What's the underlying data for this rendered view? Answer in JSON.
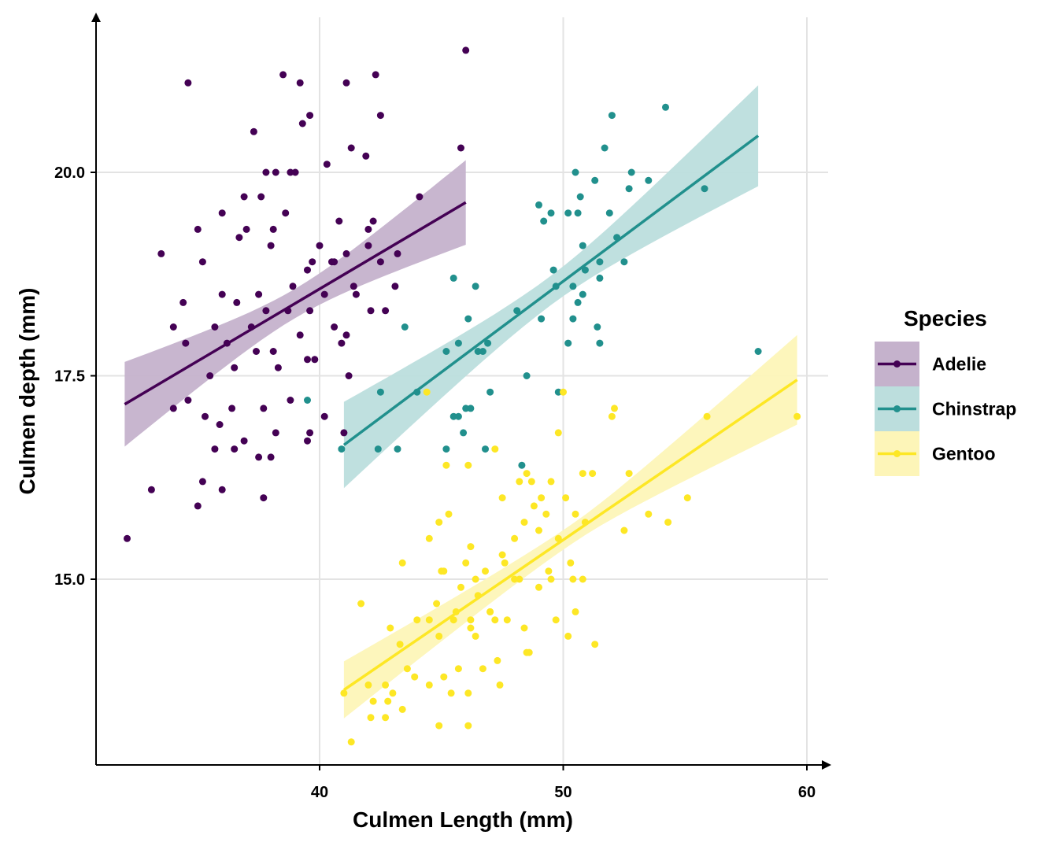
{
  "chart_data": {
    "type": "scatter",
    "xlabel": "Culmen Length (mm)",
    "ylabel": "Culmen depth (mm)",
    "xlim": [
      31.0,
      61.0
    ],
    "ylim": [
      12.6,
      22.0
    ],
    "xticks": [
      40,
      50,
      60
    ],
    "xtick_labels": [
      "40",
      "50",
      "60"
    ],
    "yticks": [
      15.0,
      17.5,
      20.0
    ],
    "ytick_labels": [
      "15.0",
      "17.5",
      "20.0"
    ],
    "grid": true,
    "legend": {
      "title": "Species",
      "placement": "right"
    },
    "series": [
      {
        "name": "Adelie",
        "color": "#440154",
        "fill": "#c5b2cc",
        "fit": {
          "x0": 32.0,
          "y0": 17.15,
          "x1": 46.0,
          "y1": 19.63,
          "ci_start": 0.52,
          "ci_mid": 0.18,
          "ci_end": 0.52
        },
        "points": [
          [
            46.0,
            21.5
          ],
          [
            38.5,
            21.2
          ],
          [
            42.3,
            21.2
          ],
          [
            34.6,
            21.1
          ],
          [
            39.2,
            21.1
          ],
          [
            41.1,
            21.1
          ],
          [
            42.5,
            20.7
          ],
          [
            39.6,
            20.7
          ],
          [
            37.3,
            20.5
          ],
          [
            39.3,
            20.6
          ],
          [
            45.8,
            20.3
          ],
          [
            41.3,
            20.3
          ],
          [
            38.8,
            20.0
          ],
          [
            37.8,
            20.0
          ],
          [
            38.2,
            20.0
          ],
          [
            39.0,
            20.0
          ],
          [
            40.3,
            20.1
          ],
          [
            41.9,
            20.2
          ],
          [
            44.1,
            19.7
          ],
          [
            37.6,
            19.7
          ],
          [
            36.9,
            19.7
          ],
          [
            38.6,
            19.5
          ],
          [
            36.0,
            19.5
          ],
          [
            40.8,
            19.4
          ],
          [
            42.2,
            19.4
          ],
          [
            37.0,
            19.3
          ],
          [
            35.0,
            19.3
          ],
          [
            38.1,
            19.3
          ],
          [
            42.0,
            19.3
          ],
          [
            33.5,
            19.0
          ],
          [
            36.7,
            19.2
          ],
          [
            38.0,
            19.1
          ],
          [
            40.0,
            19.1
          ],
          [
            42.0,
            19.1
          ],
          [
            39.7,
            18.9
          ],
          [
            40.6,
            18.9
          ],
          [
            41.1,
            19.0
          ],
          [
            42.5,
            18.9
          ],
          [
            43.2,
            19.0
          ],
          [
            35.2,
            18.9
          ],
          [
            39.5,
            18.8
          ],
          [
            40.5,
            18.9
          ],
          [
            41.4,
            18.6
          ],
          [
            36.0,
            18.5
          ],
          [
            37.5,
            18.5
          ],
          [
            38.9,
            18.6
          ],
          [
            40.2,
            18.5
          ],
          [
            41.5,
            18.5
          ],
          [
            43.1,
            18.6
          ],
          [
            34.4,
            18.4
          ],
          [
            36.6,
            18.4
          ],
          [
            38.7,
            18.3
          ],
          [
            39.6,
            18.3
          ],
          [
            37.8,
            18.3
          ],
          [
            40.6,
            18.1
          ],
          [
            42.1,
            18.3
          ],
          [
            34.0,
            18.1
          ],
          [
            35.7,
            18.1
          ],
          [
            37.2,
            18.1
          ],
          [
            39.2,
            18.0
          ],
          [
            40.9,
            17.9
          ],
          [
            41.1,
            18.0
          ],
          [
            42.7,
            18.3
          ],
          [
            34.5,
            17.9
          ],
          [
            36.2,
            17.9
          ],
          [
            38.1,
            17.8
          ],
          [
            39.8,
            17.7
          ],
          [
            37.4,
            17.8
          ],
          [
            35.5,
            17.5
          ],
          [
            36.5,
            17.6
          ],
          [
            38.3,
            17.6
          ],
          [
            39.5,
            17.7
          ],
          [
            41.2,
            17.5
          ],
          [
            34.6,
            17.2
          ],
          [
            35.3,
            17.0
          ],
          [
            36.4,
            17.1
          ],
          [
            37.7,
            17.1
          ],
          [
            38.8,
            17.2
          ],
          [
            40.2,
            17.0
          ],
          [
            34.0,
            17.1
          ],
          [
            35.9,
            16.9
          ],
          [
            36.9,
            16.7
          ],
          [
            38.2,
            16.8
          ],
          [
            39.6,
            16.8
          ],
          [
            41.0,
            16.8
          ],
          [
            35.7,
            16.6
          ],
          [
            37.5,
            16.5
          ],
          [
            38.0,
            16.5
          ],
          [
            39.5,
            16.7
          ],
          [
            36.5,
            16.6
          ],
          [
            35.2,
            16.2
          ],
          [
            33.1,
            16.1
          ],
          [
            36.0,
            16.1
          ],
          [
            37.7,
            16.0
          ],
          [
            35.0,
            15.9
          ],
          [
            32.1,
            15.5
          ]
        ]
      },
      {
        "name": "Chinstrap",
        "color": "#21908d",
        "fill": "#bcdedd",
        "fit": {
          "x0": 41.0,
          "y0": 16.65,
          "x1": 58.0,
          "y1": 20.45,
          "ci_start": 0.53,
          "ci_mid": 0.18,
          "ci_end": 0.62
        },
        "points": [
          [
            54.2,
            20.8
          ],
          [
            52.0,
            20.7
          ],
          [
            51.7,
            20.3
          ],
          [
            50.5,
            20.0
          ],
          [
            52.8,
            20.0
          ],
          [
            51.3,
            19.9
          ],
          [
            53.5,
            19.9
          ],
          [
            50.7,
            19.7
          ],
          [
            49.0,
            19.6
          ],
          [
            49.5,
            19.5
          ],
          [
            50.6,
            19.5
          ],
          [
            52.7,
            19.8
          ],
          [
            55.8,
            19.8
          ],
          [
            50.2,
            19.5
          ],
          [
            51.9,
            19.5
          ],
          [
            49.2,
            19.4
          ],
          [
            50.8,
            19.1
          ],
          [
            51.5,
            18.9
          ],
          [
            52.2,
            19.2
          ],
          [
            49.6,
            18.8
          ],
          [
            50.4,
            18.6
          ],
          [
            50.9,
            18.8
          ],
          [
            45.5,
            18.7
          ],
          [
            46.4,
            18.6
          ],
          [
            49.7,
            18.6
          ],
          [
            52.5,
            18.9
          ],
          [
            51.5,
            18.7
          ],
          [
            50.6,
            18.4
          ],
          [
            48.1,
            18.3
          ],
          [
            50.8,
            18.5
          ],
          [
            46.1,
            18.2
          ],
          [
            50.4,
            18.2
          ],
          [
            49.1,
            18.2
          ],
          [
            51.4,
            18.1
          ],
          [
            43.5,
            18.1
          ],
          [
            45.7,
            17.9
          ],
          [
            46.9,
            17.9
          ],
          [
            50.2,
            17.9
          ],
          [
            51.5,
            17.9
          ],
          [
            46.5,
            17.8
          ],
          [
            45.2,
            17.8
          ],
          [
            46.7,
            17.8
          ],
          [
            58.0,
            17.8
          ],
          [
            42.5,
            17.3
          ],
          [
            46.2,
            17.1
          ],
          [
            44.0,
            17.3
          ],
          [
            47.0,
            17.3
          ],
          [
            49.8,
            17.3
          ],
          [
            45.5,
            17.0
          ],
          [
            45.7,
            17.0
          ],
          [
            46.0,
            17.1
          ],
          [
            48.5,
            17.5
          ],
          [
            39.5,
            17.2
          ],
          [
            40.9,
            16.6
          ],
          [
            42.4,
            16.6
          ],
          [
            46.8,
            16.6
          ],
          [
            45.2,
            16.6
          ],
          [
            43.2,
            16.6
          ],
          [
            48.3,
            16.4
          ],
          [
            45.9,
            16.8
          ]
        ]
      },
      {
        "name": "Gentoo",
        "color": "#fde725",
        "fill": "#fdf5b8",
        "fit": {
          "x0": 41.0,
          "y0": 13.64,
          "x1": 59.6,
          "y1": 17.45,
          "ci_start": 0.35,
          "ci_mid": 0.12,
          "ci_end": 0.55
        },
        "points": [
          [
            50.0,
            17.3
          ],
          [
            52.1,
            17.1
          ],
          [
            44.4,
            17.3
          ],
          [
            55.9,
            17.0
          ],
          [
            59.6,
            17.0
          ],
          [
            52.0,
            17.0
          ],
          [
            49.8,
            16.8
          ],
          [
            47.2,
            16.6
          ],
          [
            50.8,
            16.3
          ],
          [
            46.1,
            16.4
          ],
          [
            49.5,
            16.2
          ],
          [
            50.1,
            16.0
          ],
          [
            48.5,
            16.3
          ],
          [
            48.7,
            16.2
          ],
          [
            49.1,
            16.0
          ],
          [
            48.2,
            16.2
          ],
          [
            48.8,
            15.9
          ],
          [
            51.2,
            16.3
          ],
          [
            52.7,
            16.3
          ],
          [
            45.2,
            16.4
          ],
          [
            47.5,
            16.0
          ],
          [
            55.1,
            16.0
          ],
          [
            48.4,
            15.7
          ],
          [
            49.3,
            15.8
          ],
          [
            50.5,
            15.8
          ],
          [
            53.5,
            15.8
          ],
          [
            54.3,
            15.7
          ],
          [
            44.9,
            15.7
          ],
          [
            46.2,
            15.4
          ],
          [
            47.5,
            15.3
          ],
          [
            48.0,
            15.5
          ],
          [
            49.0,
            15.6
          ],
          [
            49.8,
            15.5
          ],
          [
            50.9,
            15.7
          ],
          [
            52.5,
            15.6
          ],
          [
            45.3,
            15.8
          ],
          [
            46.8,
            15.1
          ],
          [
            47.6,
            15.2
          ],
          [
            48.2,
            15.0
          ],
          [
            49.0,
            14.9
          ],
          [
            49.5,
            15.0
          ],
          [
            50.3,
            15.2
          ],
          [
            46.4,
            15.0
          ],
          [
            44.5,
            15.5
          ],
          [
            43.4,
            15.2
          ],
          [
            45.0,
            15.1
          ],
          [
            45.8,
            14.9
          ],
          [
            46.0,
            15.2
          ],
          [
            47.2,
            14.5
          ],
          [
            48.0,
            15.0
          ],
          [
            49.4,
            15.1
          ],
          [
            50.4,
            15.0
          ],
          [
            50.8,
            15.0
          ],
          [
            41.7,
            14.7
          ],
          [
            44.0,
            14.5
          ],
          [
            44.8,
            14.7
          ],
          [
            45.6,
            14.6
          ],
          [
            46.2,
            14.4
          ],
          [
            47.0,
            14.6
          ],
          [
            47.7,
            14.5
          ],
          [
            48.4,
            14.4
          ],
          [
            49.7,
            14.5
          ],
          [
            46.5,
            14.8
          ],
          [
            42.9,
            14.4
          ],
          [
            43.3,
            14.2
          ],
          [
            44.9,
            14.3
          ],
          [
            45.5,
            14.5
          ],
          [
            46.4,
            14.3
          ],
          [
            47.3,
            14.0
          ],
          [
            48.5,
            14.1
          ],
          [
            50.2,
            14.3
          ],
          [
            51.3,
            14.2
          ],
          [
            43.6,
            13.9
          ],
          [
            45.1,
            13.8
          ],
          [
            46.7,
            13.9
          ],
          [
            47.4,
            13.7
          ],
          [
            44.5,
            13.7
          ],
          [
            41.0,
            13.6
          ],
          [
            42.2,
            13.5
          ],
          [
            43.0,
            13.6
          ],
          [
            45.4,
            13.6
          ],
          [
            46.1,
            13.2
          ],
          [
            44.9,
            13.2
          ],
          [
            41.3,
            13.0
          ],
          [
            43.4,
            13.4
          ],
          [
            42.7,
            13.7
          ],
          [
            46.1,
            13.6
          ],
          [
            42.7,
            13.3
          ],
          [
            45.7,
            13.9
          ],
          [
            43.9,
            13.8
          ],
          [
            42.0,
            13.7
          ],
          [
            44.5,
            14.5
          ],
          [
            42.1,
            13.3
          ],
          [
            47.0,
            14.6
          ],
          [
            48.6,
            14.1
          ],
          [
            42.8,
            13.5
          ],
          [
            46.2,
            14.5
          ],
          [
            50.5,
            14.6
          ],
          [
            45.1,
            15.1
          ]
        ]
      }
    ]
  }
}
